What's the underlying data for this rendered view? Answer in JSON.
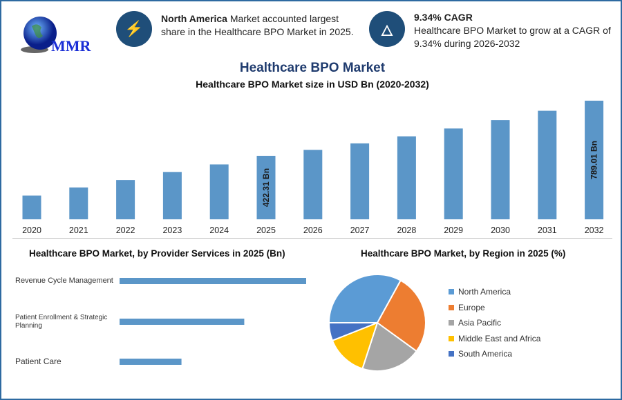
{
  "logo": {
    "text": "MMR"
  },
  "info1": {
    "bold": "North America",
    "text": " Market accounted largest share in the Healthcare BPO Market in 2025.",
    "icon": "lightning-icon"
  },
  "info2": {
    "bold": "9.34% CAGR",
    "text": "Healthcare BPO Market to grow at a CAGR of 9.34% during 2026-2032",
    "icon": "flame-icon"
  },
  "colors": {
    "bar": "#5b96c8",
    "navy": "#1f4e79"
  },
  "chart_data": [
    {
      "type": "bar",
      "title": "Healthcare BPO Market",
      "subtitle": "Healthcare BPO Market size in USD Bn (2020-2032)",
      "categories": [
        "2020",
        "2021",
        "2022",
        "2023",
        "2024",
        "2025",
        "2026",
        "2027",
        "2028",
        "2029",
        "2030",
        "2031",
        "2032"
      ],
      "values": [
        158,
        212,
        261,
        315,
        365,
        422.31,
        462,
        505,
        552,
        604,
        660,
        722,
        789.01
      ],
      "data_labels": {
        "2025": "422.31 Bn",
        "2032": "789.01 Bn"
      },
      "grid": false
    },
    {
      "type": "bar",
      "orientation": "horizontal",
      "title": "Healthcare BPO Market, by Provider Services in 2025 (Bn)",
      "categories": [
        "Revenue Cycle Management",
        "Patient Enrollment & Strategic Planning",
        "Patient Care"
      ],
      "values": [
        211,
        141,
        70
      ]
    },
    {
      "type": "pie",
      "title": "Healthcare BPO Market, by Region in 2025 (%)",
      "categories": [
        "North America",
        "Europe",
        "Asia Pacific",
        "Middle East and Africa",
        "South America"
      ],
      "values": [
        33,
        27,
        20,
        14,
        6
      ],
      "colors": [
        "#5b9bd5",
        "#ed7d31",
        "#a5a5a5",
        "#ffc000",
        "#4472c4"
      ],
      "legend": "right"
    }
  ]
}
